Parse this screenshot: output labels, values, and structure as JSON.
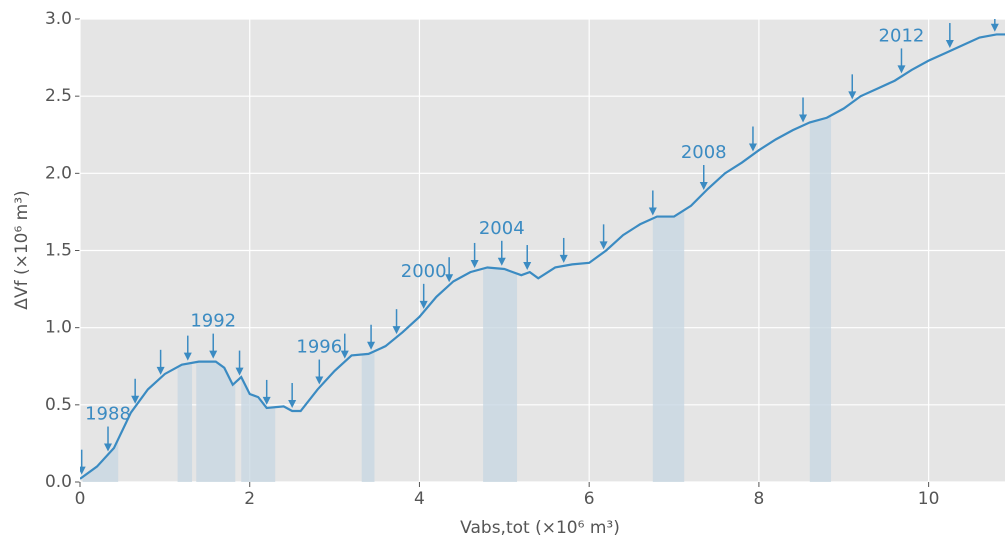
{
  "chart_data": {
    "type": "line",
    "xlabel": "Vabs,tot (×10⁶ m³)",
    "ylabel": "ΔVf (×10⁶ m³)",
    "x": [
      0,
      0.2,
      0.4,
      0.6,
      0.8,
      1.0,
      1.2,
      1.4,
      1.6,
      1.7,
      1.8,
      1.9,
      2.0,
      2.1,
      2.2,
      2.4,
      2.5,
      2.6,
      2.8,
      3.0,
      3.2,
      3.4,
      3.6,
      3.8,
      4.0,
      4.2,
      4.4,
      4.6,
      4.8,
      5.0,
      5.2,
      5.3,
      5.4,
      5.6,
      5.8,
      6.0,
      6.2,
      6.4,
      6.6,
      6.8,
      7.0,
      7.2,
      7.4,
      7.6,
      7.8,
      8.0,
      8.2,
      8.4,
      8.6,
      8.8,
      9.0,
      9.2,
      9.4,
      9.6,
      9.8,
      10.0,
      10.2,
      10.4,
      10.6,
      10.8,
      10.9
    ],
    "values": [
      0.02,
      0.1,
      0.22,
      0.45,
      0.6,
      0.7,
      0.76,
      0.78,
      0.78,
      0.74,
      0.63,
      0.68,
      0.57,
      0.55,
      0.48,
      0.49,
      0.46,
      0.46,
      0.6,
      0.72,
      0.82,
      0.83,
      0.88,
      0.97,
      1.07,
      1.2,
      1.3,
      1.36,
      1.39,
      1.38,
      1.34,
      1.36,
      1.32,
      1.39,
      1.41,
      1.42,
      1.5,
      1.6,
      1.67,
      1.72,
      1.72,
      1.79,
      1.9,
      2.0,
      2.07,
      2.15,
      2.22,
      2.28,
      2.33,
      2.36,
      2.42,
      2.5,
      2.55,
      2.6,
      2.67,
      2.73,
      2.78,
      2.83,
      2.88,
      2.9,
      2.9
    ],
    "color": "#3b8bc2",
    "spans": [
      [
        0.03,
        0.45
      ],
      [
        1.15,
        1.32
      ],
      [
        1.37,
        1.83
      ],
      [
        1.9,
        2.3
      ],
      [
        3.32,
        3.47
      ],
      [
        4.75,
        5.15
      ],
      [
        6.75,
        7.12
      ],
      [
        8.6,
        8.85
      ]
    ],
    "span_color": "#c5d6e2",
    "arrows_x": [
      0.02,
      0.33,
      0.65,
      0.95,
      1.27,
      1.57,
      1.88,
      2.2,
      2.5,
      2.82,
      3.12,
      3.43,
      3.73,
      4.05,
      4.35,
      4.65,
      4.97,
      5.27,
      5.7,
      6.17,
      6.75,
      7.35,
      7.93,
      8.52,
      9.1,
      9.68,
      10.25,
      10.78
    ],
    "annotations": [
      {
        "text": "1988",
        "x": 0.33
      },
      {
        "text": "1992",
        "x": 1.57
      },
      {
        "text": "1996",
        "x": 2.82
      },
      {
        "text": "2000",
        "x": 4.05
      },
      {
        "text": "2004",
        "x": 4.97
      },
      {
        "text": "2008",
        "x": 7.35
      },
      {
        "text": "2012",
        "x": 9.68
      }
    ],
    "xlim": [
      0,
      10.9
    ],
    "ylim": [
      0,
      3.0
    ],
    "xticks": [
      0,
      2,
      4,
      6,
      8,
      10
    ],
    "yticks": [
      {
        "value": 0,
        "label": "0.0"
      },
      {
        "value": 0.5,
        "label": "0.5"
      },
      {
        "value": 1.0,
        "label": "1.0"
      },
      {
        "value": 1.5,
        "label": "1.5"
      },
      {
        "value": 2.0,
        "label": "2.0"
      },
      {
        "value": 2.5,
        "label": "2.5"
      },
      {
        "value": 3.0,
        "label": "3.0"
      }
    ],
    "grid": true
  }
}
